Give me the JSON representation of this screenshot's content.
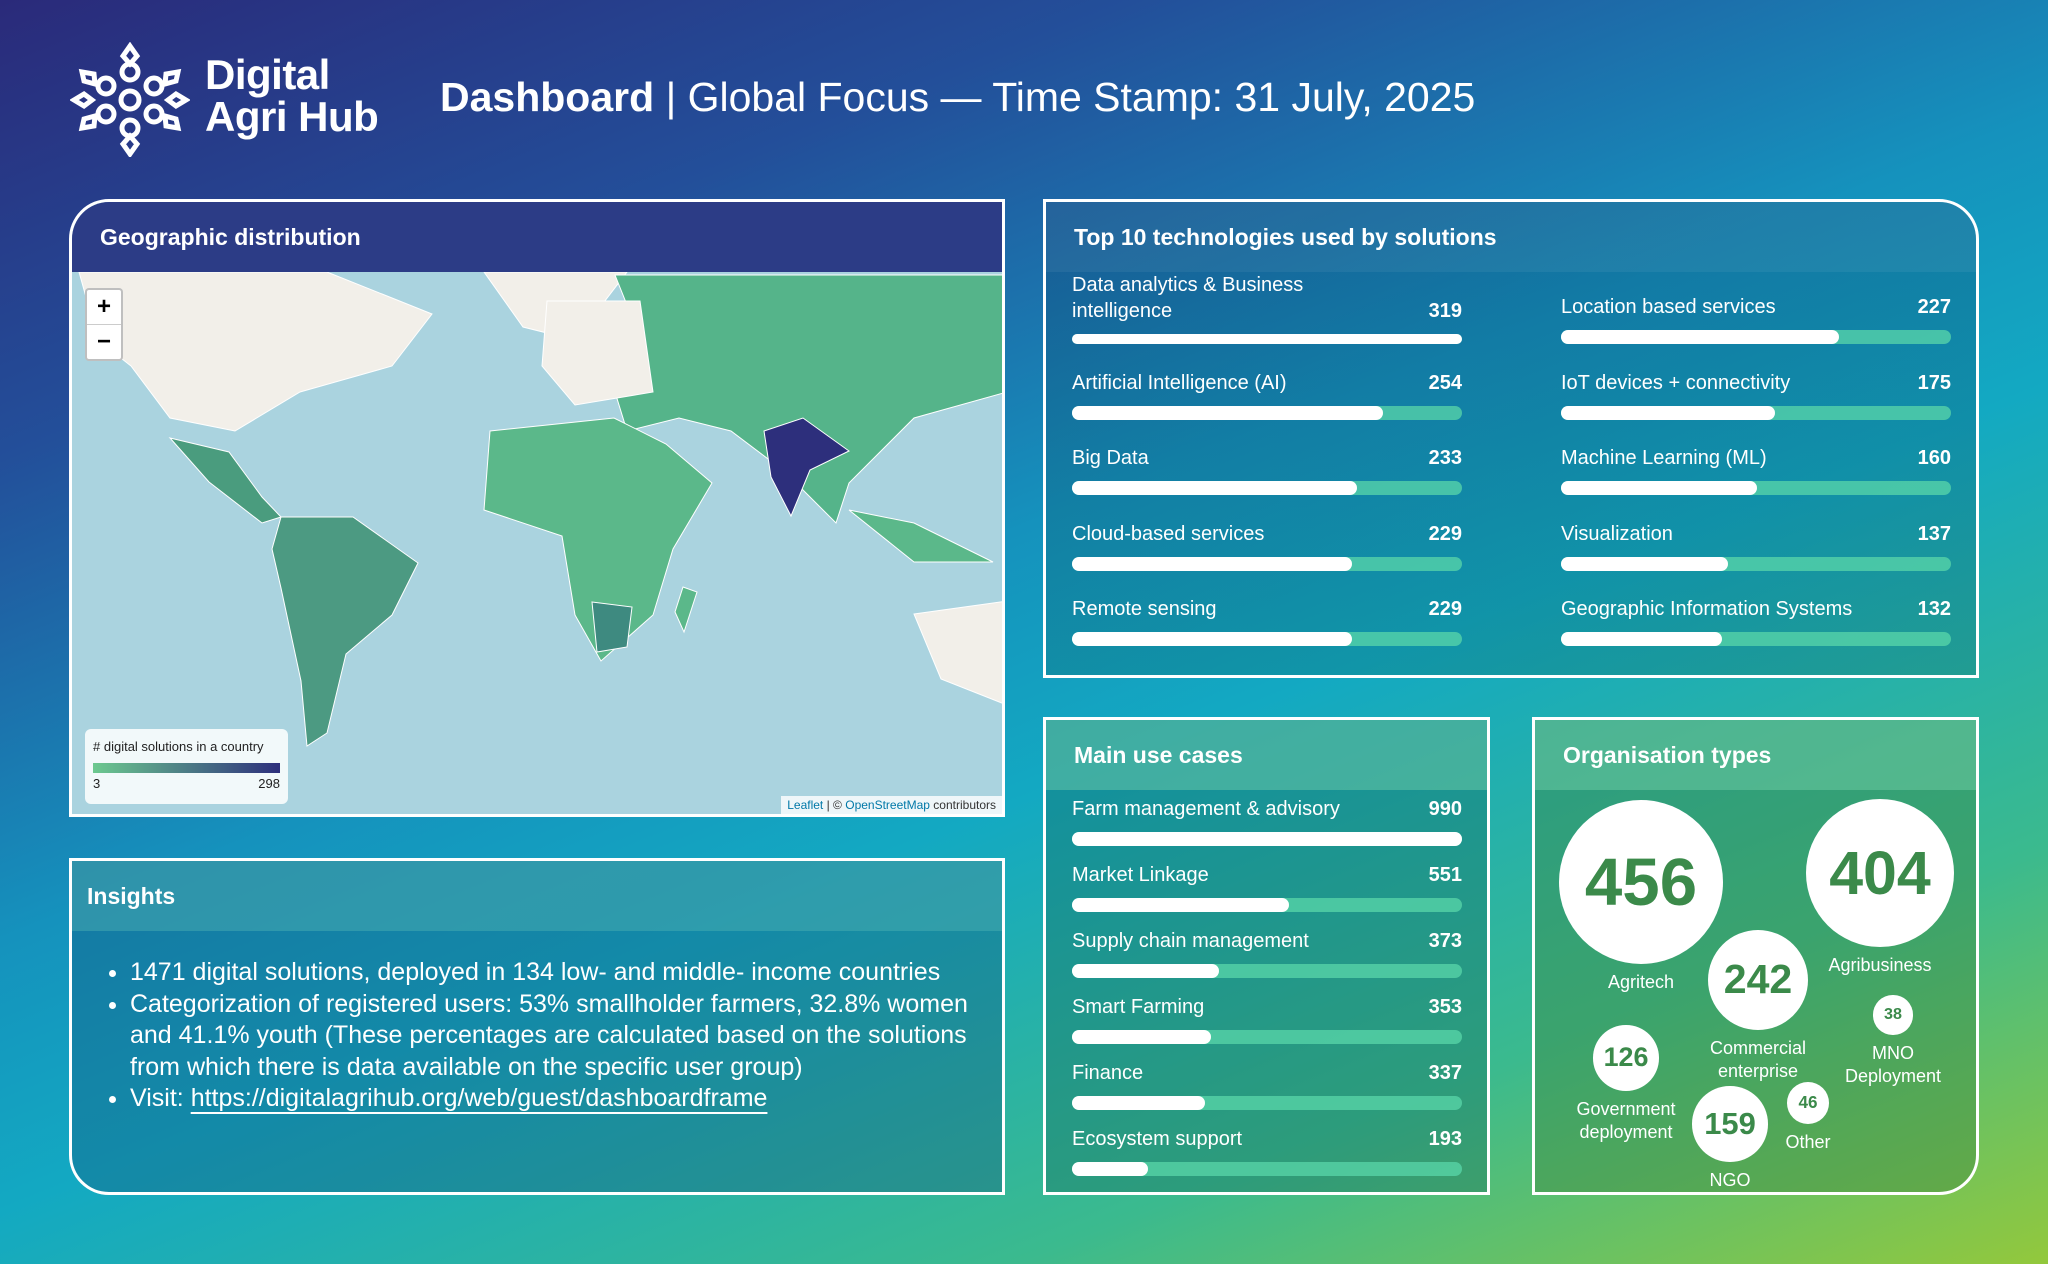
{
  "logo": {
    "line1": "Digital",
    "line2": "Agri Hub"
  },
  "header": {
    "title_bold": "Dashboard",
    "title_rest": "| Global Focus — Time Stamp: 31 July, 2025"
  },
  "geographic": {
    "title": "Geographic distribution",
    "zoom_in": "+",
    "zoom_out": "−",
    "legend": {
      "title": "# digital solutions in a country",
      "min": 3,
      "max": 298
    },
    "attribution": {
      "leaflet": "Leaflet",
      "separator": "| ©",
      "osm": "OpenStreetMap",
      "contributors": "contributors"
    }
  },
  "insights": {
    "title": "Insights",
    "bullets": [
      "1471 digital solutions, deployed in 134 low- and middle- income countries",
      "Categorization of registered users: 53% smallholder farmers, 32.8% women and 41.1% youth (These percentages are calculated based on the solutions from which there is data available on the specific user group)"
    ],
    "visit": {
      "label": "Visit:",
      "url": "https://digitalagrihub.org/web/guest/dashboardframe"
    }
  },
  "technologies": {
    "title": "Top 10 technologies used by solutions",
    "items": [
      {
        "name": "Data analytics & Business intelligence",
        "value": 319
      },
      {
        "name": "Artificial Intelligence (AI)",
        "value": 254
      },
      {
        "name": "Big Data",
        "value": 233
      },
      {
        "name": "Cloud-based services",
        "value": 229
      },
      {
        "name": "Remote sensing",
        "value": 229
      },
      {
        "name": "Location based services",
        "value": 227
      },
      {
        "name": "IoT devices + connectivity",
        "value": 175
      },
      {
        "name": "Machine Learning (ML)",
        "value": 160
      },
      {
        "name": "Visualization",
        "value": 137
      },
      {
        "name": "Geographic Information Systems",
        "value": 132
      }
    ]
  },
  "use_cases": {
    "title": "Main use cases",
    "items": [
      {
        "name": "Farm management & advisory",
        "value": 990
      },
      {
        "name": "Market Linkage",
        "value": 551
      },
      {
        "name": "Supply chain management",
        "value": 373
      },
      {
        "name": "Smart Farming",
        "value": 353
      },
      {
        "name": "Finance",
        "value": 337
      },
      {
        "name": "Ecosystem support",
        "value": 193
      }
    ]
  },
  "organisations": {
    "title": "Organisation types",
    "items": [
      {
        "name": "Agritech",
        "value": 456
      },
      {
        "name": "Agribusiness",
        "value": 404
      },
      {
        "name": "Commercial enterprise",
        "value": 242
      },
      {
        "name": "MNO Deployment",
        "value": 38
      },
      {
        "name": "Government deployment",
        "value": 126
      },
      {
        "name": "NGO",
        "value": 159
      },
      {
        "name": "Other",
        "value": 46
      }
    ]
  }
}
